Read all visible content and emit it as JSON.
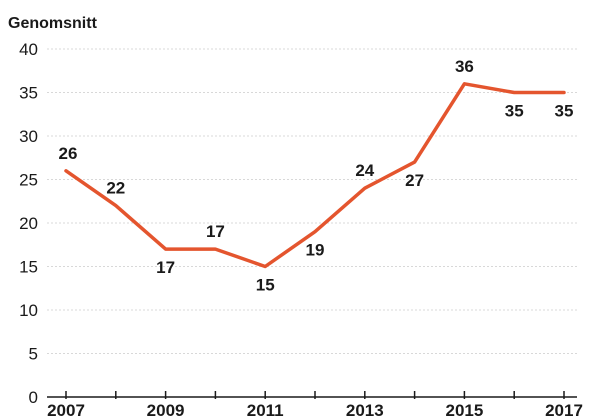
{
  "chart_data": {
    "type": "line",
    "ylabel": "Genomsnitt",
    "x": [
      2007,
      2008,
      2009,
      2010,
      2011,
      2012,
      2013,
      2014,
      2015,
      2016,
      2017
    ],
    "series": [
      {
        "values": [
          26,
          22,
          17,
          17,
          15,
          19,
          24,
          27,
          36,
          35,
          35
        ]
      }
    ],
    "data_labels": [
      "26",
      "22",
      "17",
      "17",
      "15",
      "19",
      "24",
      "27",
      "36",
      "35",
      "35"
    ],
    "x_tick_labels": [
      "2007",
      "2009",
      "2011",
      "2013",
      "2015",
      "2017"
    ],
    "y_tick_labels": [
      "0",
      "5",
      "10",
      "15",
      "20",
      "25",
      "30",
      "35",
      "40"
    ],
    "ylim": [
      0,
      40
    ],
    "grid": true,
    "line_color": "#e4552e"
  }
}
